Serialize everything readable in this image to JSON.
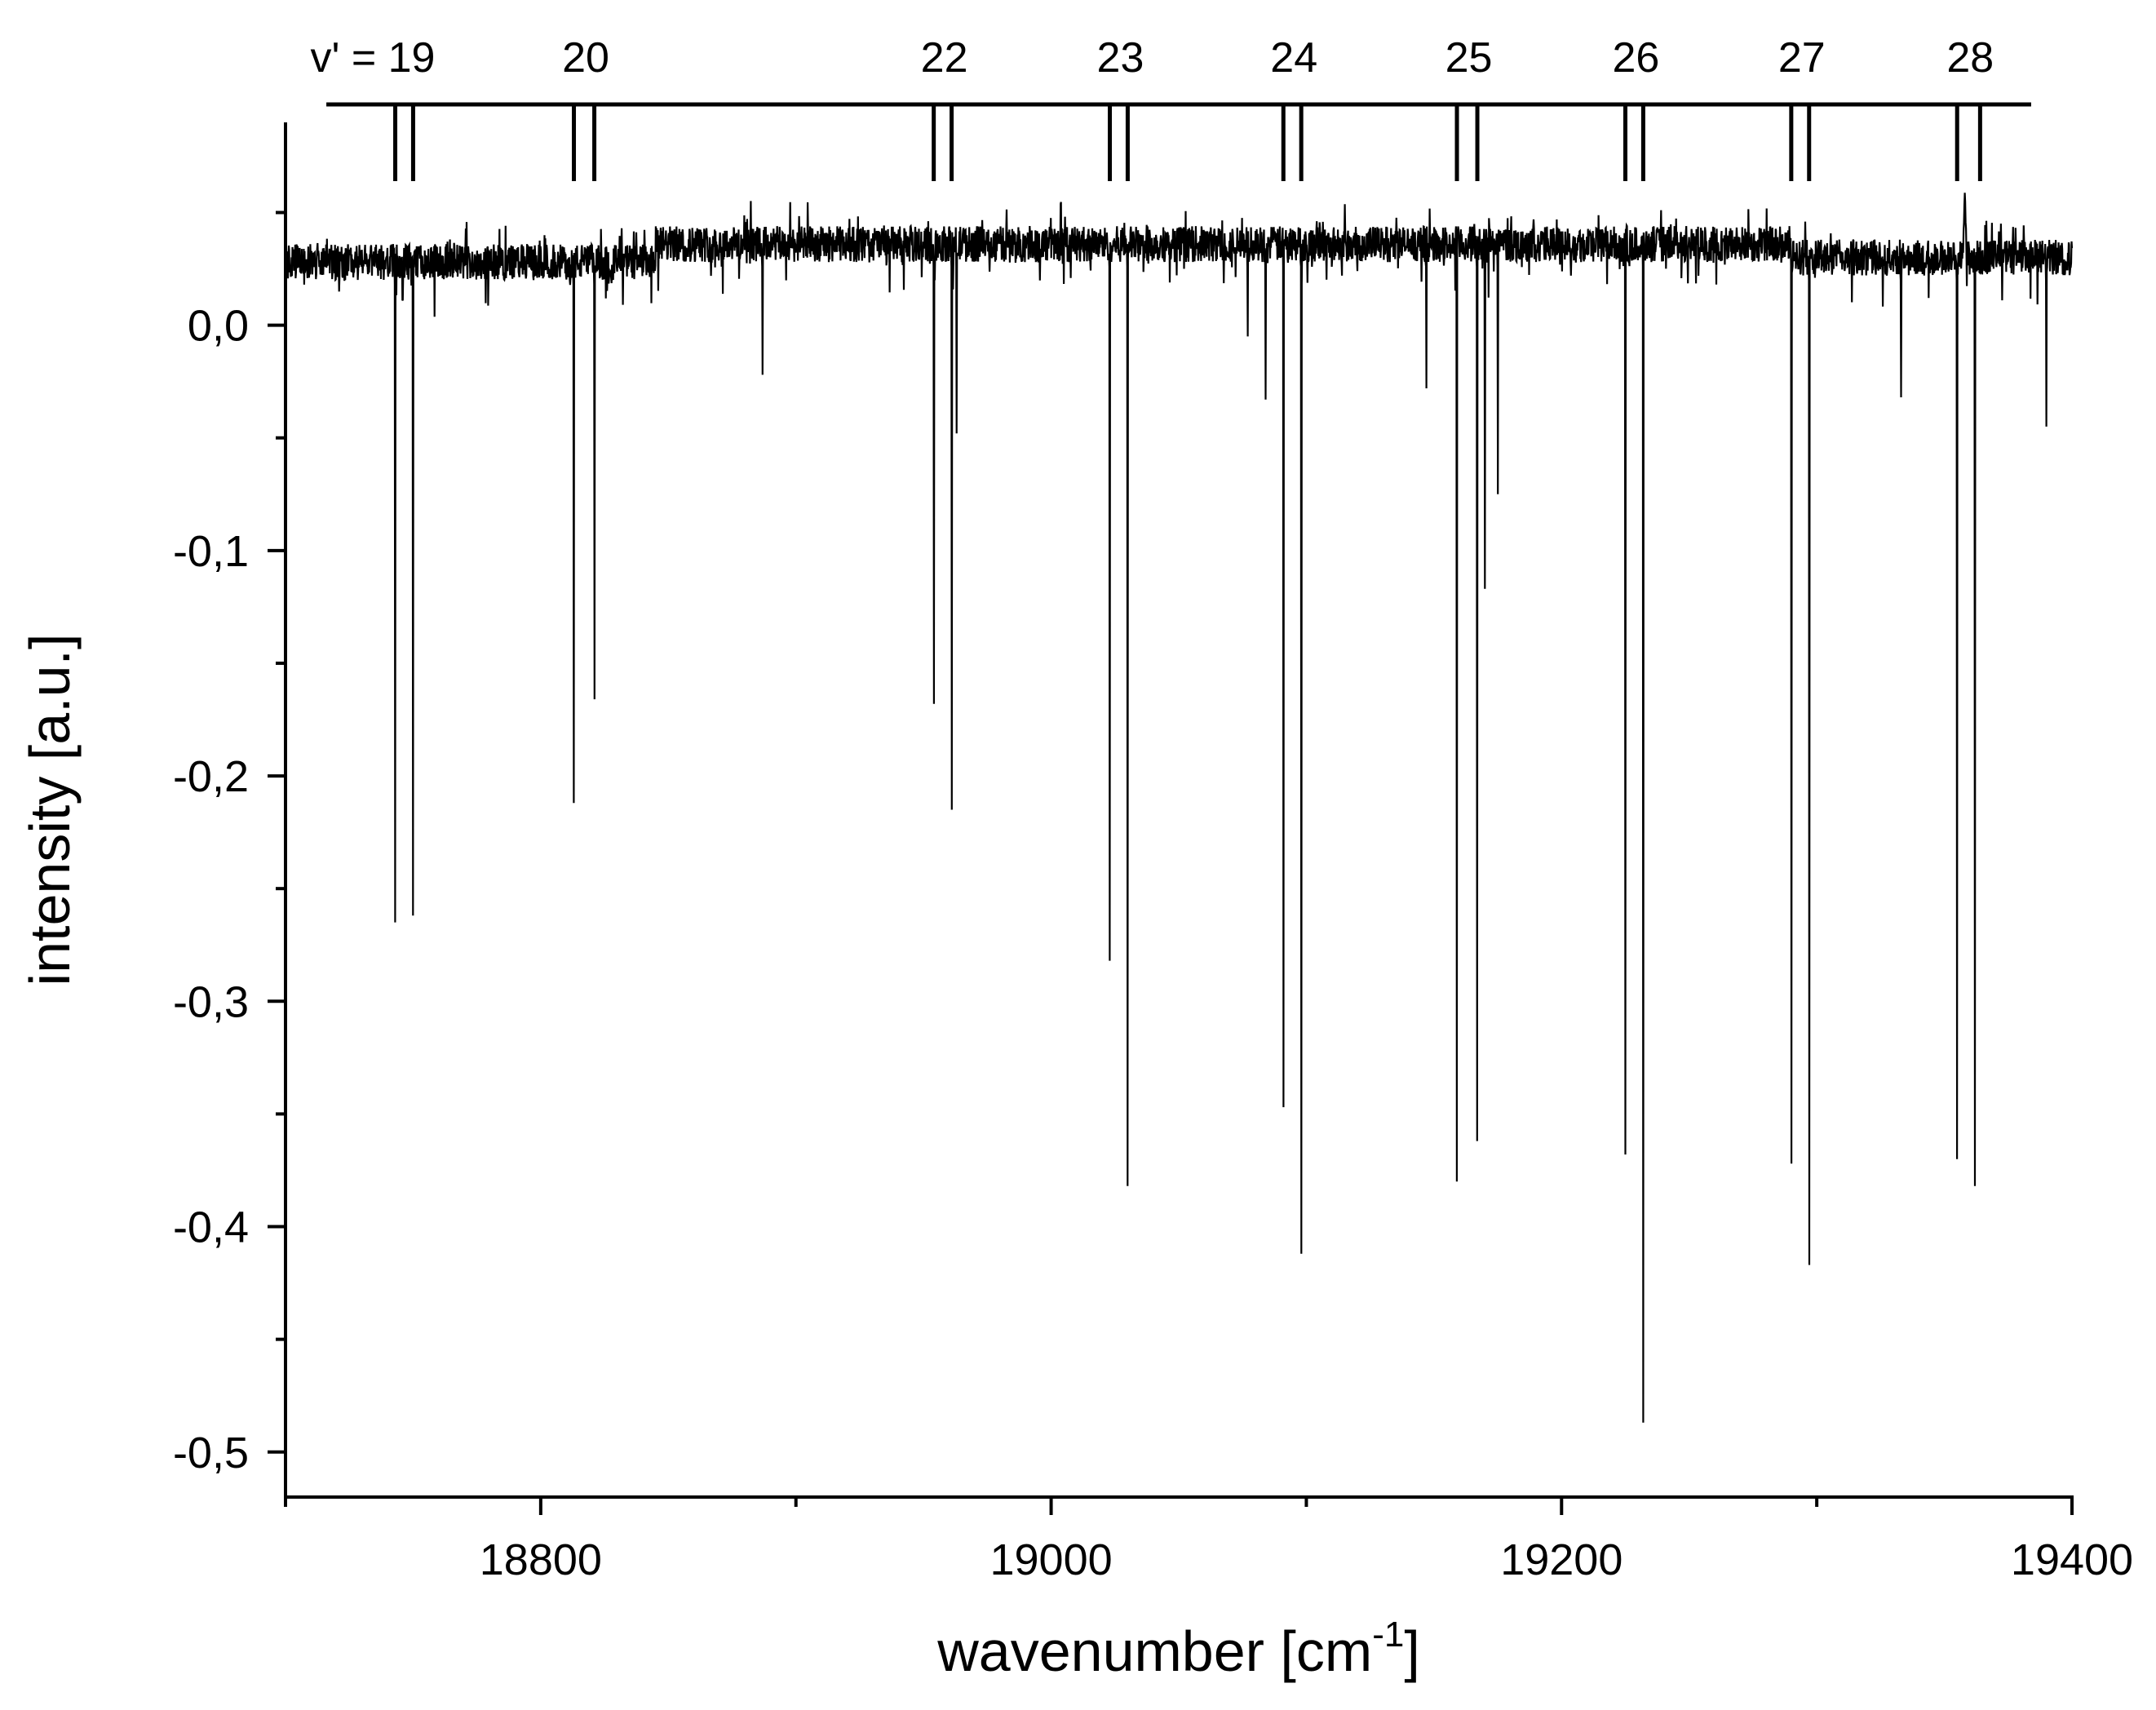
{
  "chart_data": {
    "type": "line",
    "title": "",
    "xlabel": "wavenumber [cm",
    "xlabel_sup": "-1",
    "xlabel_tail": "]",
    "ylabel": "intensity [a.u.]",
    "xlim": [
      18700,
      19400
    ],
    "ylim": [
      -0.52,
      0.09
    ],
    "x_ticks": [
      {
        "value": 18800,
        "label": "18800"
      },
      {
        "value": 19000,
        "label": "19000"
      },
      {
        "value": 19200,
        "label": "19200"
      },
      {
        "value": 19400,
        "label": "19400"
      }
    ],
    "x_minor_ticks": [
      18700,
      18900,
      19100,
      19300
    ],
    "y_ticks": [
      {
        "value": 0.0,
        "label": "0,0"
      },
      {
        "value": -0.1,
        "label": "-0,1"
      },
      {
        "value": -0.2,
        "label": "-0,2"
      },
      {
        "value": -0.3,
        "label": "-0,3"
      },
      {
        "value": -0.4,
        "label": "-0,4"
      },
      {
        "value": -0.5,
        "label": "-0,5"
      }
    ],
    "y_minor_ticks": [
      0.05,
      -0.05,
      -0.15,
      -0.25,
      -0.35,
      -0.45
    ],
    "grid": false,
    "baseline": {
      "noise_amplitude": 0.008,
      "segments": [
        {
          "x": [
            18700,
            18845
          ],
          "y": 0.028
        },
        {
          "x": [
            18845,
            19290
          ],
          "y": 0.036
        },
        {
          "x": [
            19290,
            19400
          ],
          "y": 0.03
        }
      ]
    },
    "series": [
      {
        "line_color": "#000000",
        "peaks": [
          {
            "x": 18743,
            "y": -0.265
          },
          {
            "x": 18750,
            "y": -0.262
          },
          {
            "x": 18813,
            "y": -0.212
          },
          {
            "x": 18821,
            "y": -0.166
          },
          {
            "x": 18887,
            "y": -0.022
          },
          {
            "x": 18954,
            "y": -0.168
          },
          {
            "x": 18961,
            "y": -0.215
          },
          {
            "x": 18963,
            "y": -0.048
          },
          {
            "x": 19023,
            "y": -0.282
          },
          {
            "x": 19030,
            "y": -0.382
          },
          {
            "x": 19077,
            "y": -0.005
          },
          {
            "x": 19084,
            "y": -0.033
          },
          {
            "x": 19091,
            "y": -0.347
          },
          {
            "x": 19098,
            "y": -0.412
          },
          {
            "x": 19147,
            "y": -0.028
          },
          {
            "x": 19159,
            "y": -0.38
          },
          {
            "x": 19167,
            "y": -0.362
          },
          {
            "x": 19170,
            "y": -0.117
          },
          {
            "x": 19175,
            "y": -0.075
          },
          {
            "x": 19225,
            "y": -0.368
          },
          {
            "x": 19232,
            "y": -0.487
          },
          {
            "x": 19290,
            "y": -0.372
          },
          {
            "x": 19297,
            "y": -0.417
          },
          {
            "x": 19333,
            "y": -0.032
          },
          {
            "x": 19355,
            "y": -0.37
          },
          {
            "x": 19362,
            "y": -0.382
          },
          {
            "x": 19390,
            "y": -0.045
          }
        ],
        "bumps": [
          {
            "x": 19358,
            "y": 0.06
          }
        ]
      }
    ],
    "band_assignments": {
      "prefix": "v' = ",
      "bar_x_range": [
        18716,
        19384
      ],
      "markers": [
        {
          "label": "19",
          "x": [
            18743,
            18750
          ]
        },
        {
          "label": "20",
          "x": [
            18813,
            18821
          ]
        },
        {
          "label": "22",
          "x": [
            18954,
            18961
          ]
        },
        {
          "label": "23",
          "x": [
            19023,
            19030
          ]
        },
        {
          "label": "24",
          "x": [
            19091,
            19098
          ]
        },
        {
          "label": "25",
          "x": [
            19159,
            19167
          ]
        },
        {
          "label": "26",
          "x": [
            19225,
            19232
          ]
        },
        {
          "label": "27",
          "x": [
            19290,
            19297
          ]
        },
        {
          "label": "28",
          "x": [
            19355,
            19364
          ]
        }
      ]
    }
  }
}
